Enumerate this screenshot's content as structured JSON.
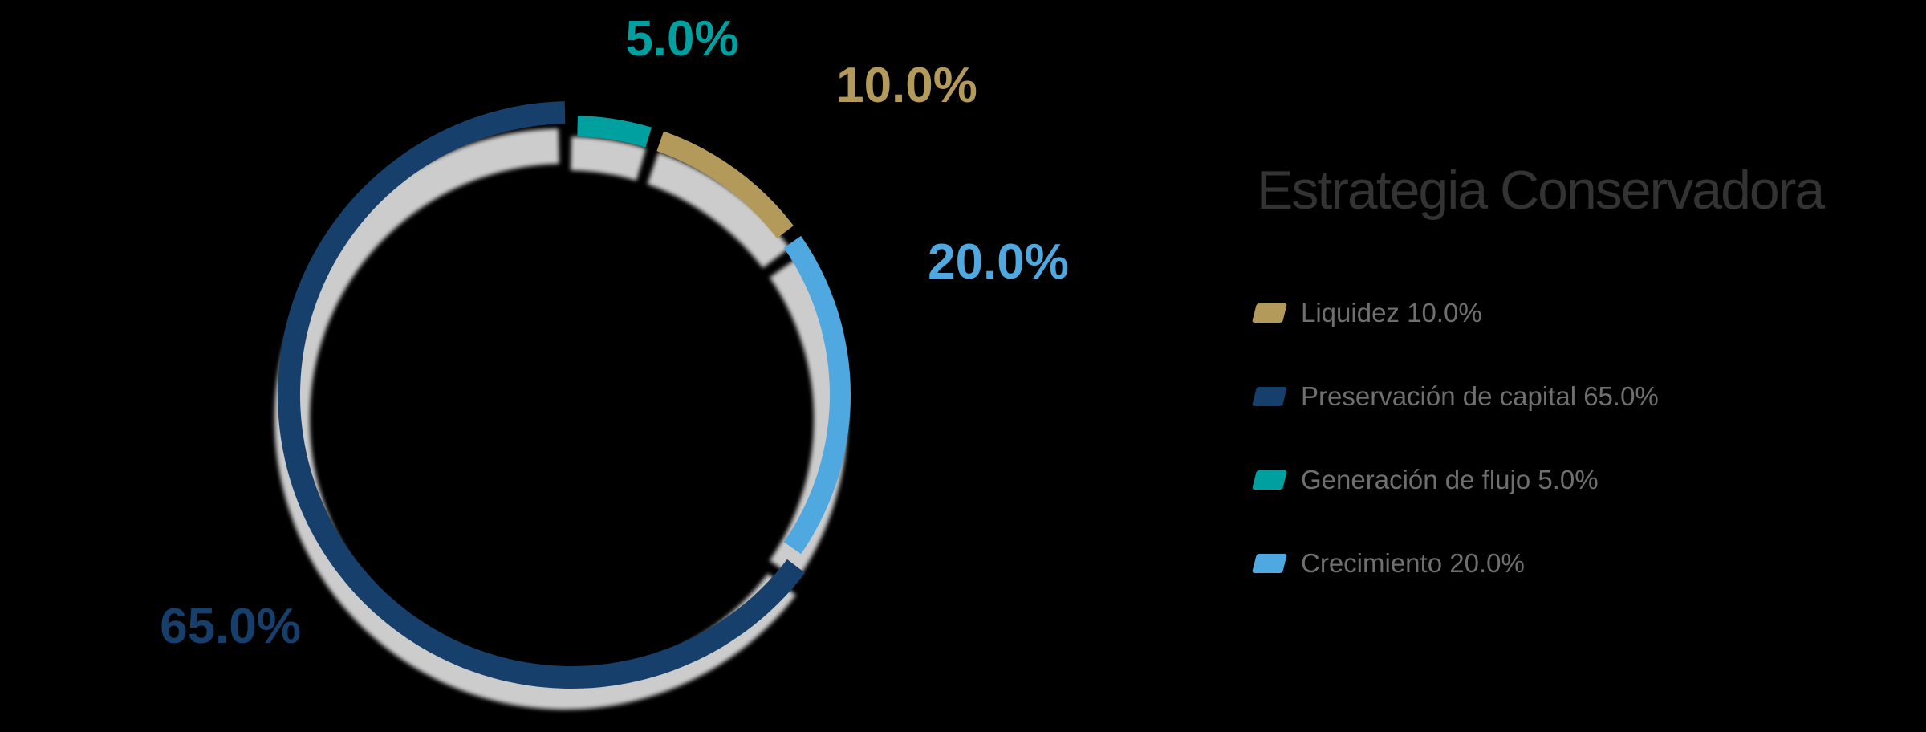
{
  "title": "Estrategia Conservadora",
  "colors": {
    "background": "#000000",
    "title_text": "#333333",
    "legend_text": "#6F6F6F",
    "shadow_track": "#CCCCCC"
  },
  "chart_data": {
    "type": "pie",
    "donut": true,
    "title": "Estrategia Conservadora",
    "start_angle_deg": 0,
    "direction": "clockwise",
    "slices": [
      {
        "name": "Generación de flujo",
        "value": 5.0,
        "pct_label": "5.0%",
        "color": "#00A0A1"
      },
      {
        "name": "Liquidez",
        "value": 10.0,
        "pct_label": "10.0%",
        "color": "#B39A5B"
      },
      {
        "name": "Crecimiento",
        "value": 20.0,
        "pct_label": "20.0%",
        "color": "#4FA8E0"
      },
      {
        "name": "Preservación de capital",
        "value": 65.0,
        "pct_label": "65.0%",
        "color": "#16406B"
      }
    ],
    "legend_position": "right",
    "legend": [
      {
        "label": "Liquidez 10.0%",
        "color": "#B39A5B"
      },
      {
        "label": "Preservación de capital 65.0%",
        "color": "#16406B"
      },
      {
        "label": "Generación de flujo 5.0%",
        "color": "#00A0A1"
      },
      {
        "label": "Crecimiento 20.0%",
        "color": "#4FA8E0"
      }
    ]
  }
}
